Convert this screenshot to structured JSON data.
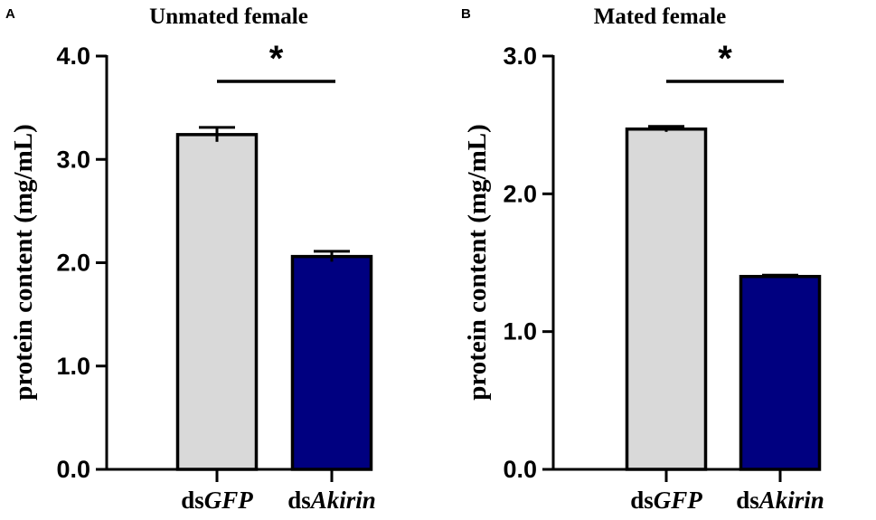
{
  "chart_data": [
    {
      "type": "bar",
      "panel": "A",
      "title": "Unmated female",
      "ylabel": "protein content (mg/mL)",
      "xlabel": "",
      "ylim": [
        0,
        4.0
      ],
      "yticks": [
        "0.0",
        "1.0",
        "2.0",
        "3.0",
        "4.0"
      ],
      "categories": [
        {
          "prefix": "ds",
          "gene": "GFP"
        },
        {
          "prefix": "ds",
          "gene": "Akirin"
        }
      ],
      "values": [
        3.24,
        2.06
      ],
      "errors": [
        0.07,
        0.05
      ],
      "colors": [
        "#d9d9d9",
        "#000080"
      ],
      "significance": "*"
    },
    {
      "type": "bar",
      "panel": "B",
      "title": "Mated female",
      "ylabel": "protein content (mg/mL)",
      "xlabel": "",
      "ylim": [
        0,
        3.0
      ],
      "yticks": [
        "0.0",
        "1.0",
        "2.0",
        "3.0"
      ],
      "categories": [
        {
          "prefix": "ds",
          "gene": "GFP"
        },
        {
          "prefix": "ds",
          "gene": "Akirin"
        }
      ],
      "values": [
        2.47,
        1.4
      ],
      "errors": [
        0.02,
        0.01
      ],
      "colors": [
        "#d9d9d9",
        "#000080"
      ],
      "significance": "*"
    }
  ]
}
